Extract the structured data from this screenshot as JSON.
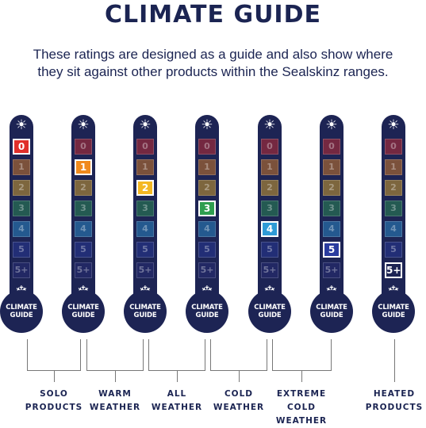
{
  "header": {
    "title": "CLIMATE GUIDE",
    "subtitle_line1": "These ratings are designed as a guide and also show where",
    "subtitle_line2": "they sit against other products within the Sealskinz ranges."
  },
  "scale": {
    "levels": [
      "0",
      "1",
      "2",
      "3",
      "4",
      "5",
      "5+"
    ],
    "colors": [
      "#e02f2a",
      "#f08a1d",
      "#f4b824",
      "#2f9e4f",
      "#2f9bd6",
      "#2a3c9f",
      "#2a2f78"
    ],
    "top_icon": "sun-icon",
    "bottom_icon": "snowflake-icon",
    "bulb_line1": "CLIMATE",
    "bulb_line2": "GUIDE"
  },
  "thermometers": [
    {
      "highlighted_level": "0"
    },
    {
      "highlighted_level": "1"
    },
    {
      "highlighted_level": "2"
    },
    {
      "highlighted_level": "3"
    },
    {
      "highlighted_level": "4"
    },
    {
      "highlighted_level": "5"
    },
    {
      "highlighted_level": "5+"
    }
  ],
  "labels": [
    {
      "line1": "SOLO",
      "line2": "PRODUCTS",
      "line3": ""
    },
    {
      "line1": "WARM",
      "line2": "WEATHER",
      "line3": ""
    },
    {
      "line1": "ALL",
      "line2": "WEATHER",
      "line3": ""
    },
    {
      "line1": "COLD",
      "line2": "WEATHER",
      "line3": ""
    },
    {
      "line1": "EXTREME",
      "line2": "COLD",
      "line3": "WEATHER"
    },
    {
      "line1": "HEATED",
      "line2": "PRODUCTS",
      "line3": ""
    }
  ]
}
